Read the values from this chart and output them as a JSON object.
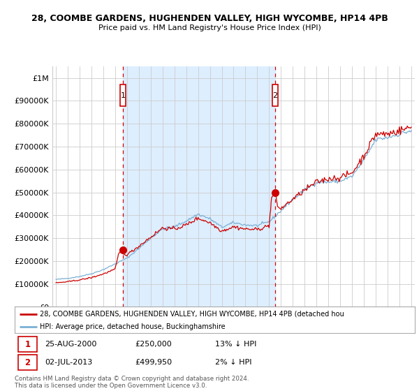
{
  "title": "28, COOMBE GARDENS, HUGHENDEN VALLEY, HIGH WYCOMBE, HP14 4PB",
  "subtitle": "Price paid vs. HM Land Registry's House Price Index (HPI)",
  "legend_line1": "28, COOMBE GARDENS, HUGHENDEN VALLEY, HIGH WYCOMBE, HP14 4PB (detached hou",
  "legend_line2": "HPI: Average price, detached house, Buckinghamshire",
  "footer": "Contains HM Land Registry data © Crown copyright and database right 2024.\nThis data is licensed under the Open Government Licence v3.0.",
  "point1_date": "25-AUG-2000",
  "point1_price": "£250,000",
  "point1_hpi": "13% ↓ HPI",
  "point2_date": "02-JUL-2013",
  "point2_price": "£499,950",
  "point2_hpi": "2% ↓ HPI",
  "ylim": [
    0,
    1050000
  ],
  "xlim": [
    1994.7,
    2025.3
  ],
  "red_color": "#cc0000",
  "blue_color": "#7ab0d4",
  "shade_color": "#ddeeff",
  "grid_color": "#cccccc",
  "background_color": "#ffffff",
  "vline1_x": 2000.65,
  "vline2_x": 2013.5,
  "marker1_x": 2000.65,
  "marker1_y": 250000,
  "marker2_x": 2013.5,
  "marker2_y": 499950
}
